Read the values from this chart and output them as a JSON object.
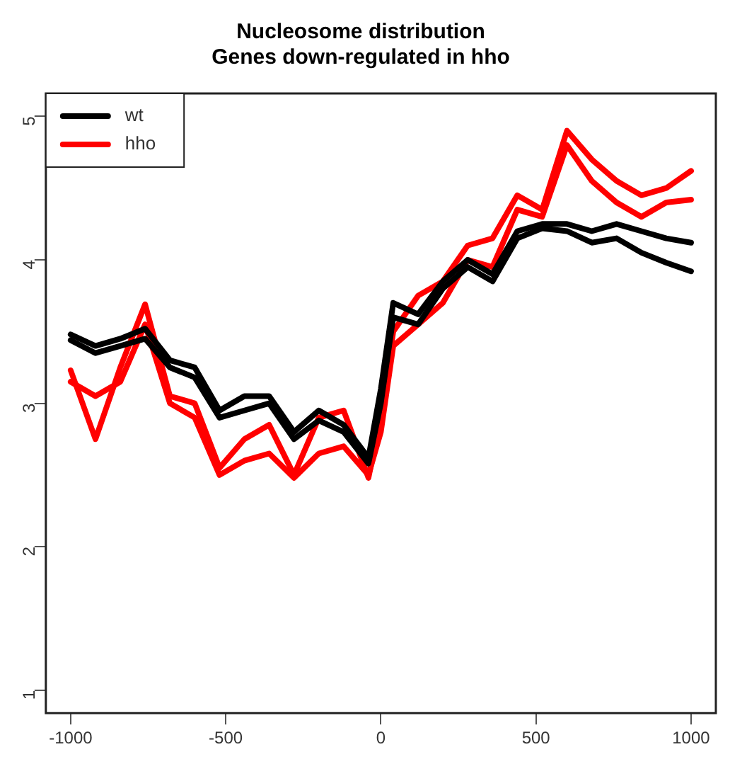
{
  "chart_data": {
    "type": "line",
    "title": "Nucleosome distribution",
    "subtitle": "Genes down-regulated in hho",
    "x": [
      -1000,
      -920,
      -840,
      -760,
      -680,
      -600,
      -520,
      -440,
      -360,
      -280,
      -200,
      -120,
      -40,
      0,
      40,
      120,
      200,
      280,
      360,
      440,
      520,
      600,
      680,
      760,
      840,
      920,
      1000
    ],
    "series": [
      {
        "name": "wt",
        "color": "#000000",
        "values": [
          3.48,
          3.4,
          3.45,
          3.52,
          3.3,
          3.25,
          2.95,
          3.05,
          3.05,
          2.8,
          2.95,
          2.85,
          2.62,
          3.1,
          3.7,
          3.62,
          3.85,
          4.0,
          3.9,
          4.2,
          4.25,
          4.25,
          4.2,
          4.25,
          4.2,
          4.15,
          4.12
        ]
      },
      {
        "color": "#000000",
        "values": [
          3.44,
          3.35,
          3.4,
          3.45,
          3.25,
          3.18,
          2.9,
          2.95,
          3.0,
          2.75,
          2.88,
          2.8,
          2.58,
          3.0,
          3.6,
          3.55,
          3.8,
          3.95,
          3.85,
          4.15,
          4.22,
          4.2,
          4.12,
          4.15,
          4.05,
          3.98,
          3.92
        ]
      },
      {
        "name": "hho",
        "color": "#ff0000",
        "values": [
          3.23,
          2.75,
          3.25,
          3.69,
          3.05,
          3.0,
          2.55,
          2.75,
          2.85,
          2.5,
          2.9,
          2.95,
          2.48,
          2.9,
          3.5,
          3.75,
          3.85,
          4.1,
          4.15,
          4.45,
          4.35,
          4.9,
          4.7,
          4.55,
          4.45,
          4.5,
          4.62
        ]
      },
      {
        "color": "#ff0000",
        "values": [
          3.15,
          3.05,
          3.15,
          3.55,
          3.0,
          2.9,
          2.5,
          2.6,
          2.65,
          2.48,
          2.65,
          2.7,
          2.5,
          2.8,
          3.4,
          3.55,
          3.7,
          4.0,
          3.95,
          4.35,
          4.3,
          4.8,
          4.55,
          4.4,
          4.3,
          4.4,
          4.42
        ]
      }
    ],
    "xlim": [
      -1080,
      1080
    ],
    "xticks": [
      -1000,
      -500,
      0,
      500,
      1000
    ],
    "ylim": [
      0.84,
      5.16
    ],
    "yticks": [
      1,
      2,
      3,
      4,
      5
    ],
    "grid": false,
    "legend": "top left",
    "marker": "none",
    "line_style": "solid"
  }
}
